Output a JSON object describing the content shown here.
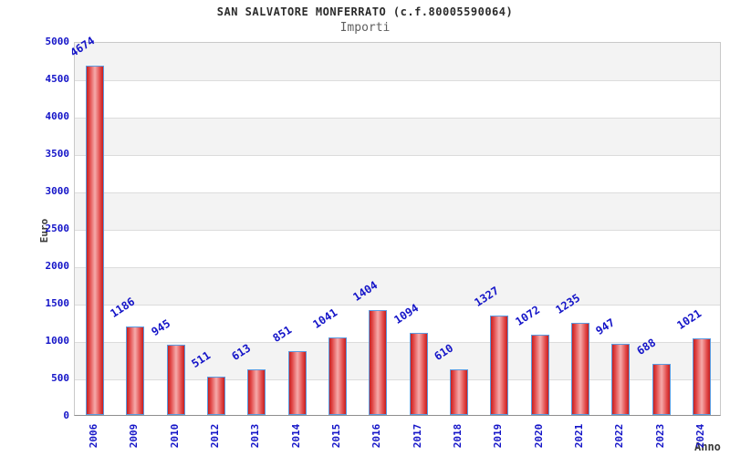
{
  "header": {
    "title": "SAN SALVATORE MONFERRATO (c.f.80005590064)",
    "subtitle": "Importi"
  },
  "chart_data": {
    "type": "bar",
    "title": "SAN SALVATORE MONFERRATO (c.f.80005590064)",
    "subtitle": "Importi",
    "xlabel": "Anno",
    "ylabel": "Euro",
    "categories": [
      "2006",
      "2009",
      "2010",
      "2012",
      "2013",
      "2014",
      "2015",
      "2016",
      "2017",
      "2018",
      "2019",
      "2020",
      "2021",
      "2022",
      "2023",
      "2024"
    ],
    "values": [
      4674,
      1186,
      945,
      511,
      613,
      851,
      1041,
      1404,
      1094,
      610,
      1327,
      1072,
      1235,
      947,
      688,
      1021
    ],
    "ylim": [
      0,
      5000
    ],
    "ytick_step": 500,
    "yticks": [
      0,
      500,
      1000,
      1500,
      2000,
      2500,
      3000,
      3500,
      4000,
      4500,
      5000
    ],
    "grid": true,
    "legend_position": "none",
    "colors": {
      "tick_label": "#1414c8",
      "value_label": "#1414c8",
      "bar_edge": "#c62020",
      "bar_center": "#f6abab",
      "bar_border": "#5b9be0",
      "band": "#f3f3f3",
      "gridline": "#dcdcdc",
      "axis_title": "#3a3a3a"
    }
  }
}
